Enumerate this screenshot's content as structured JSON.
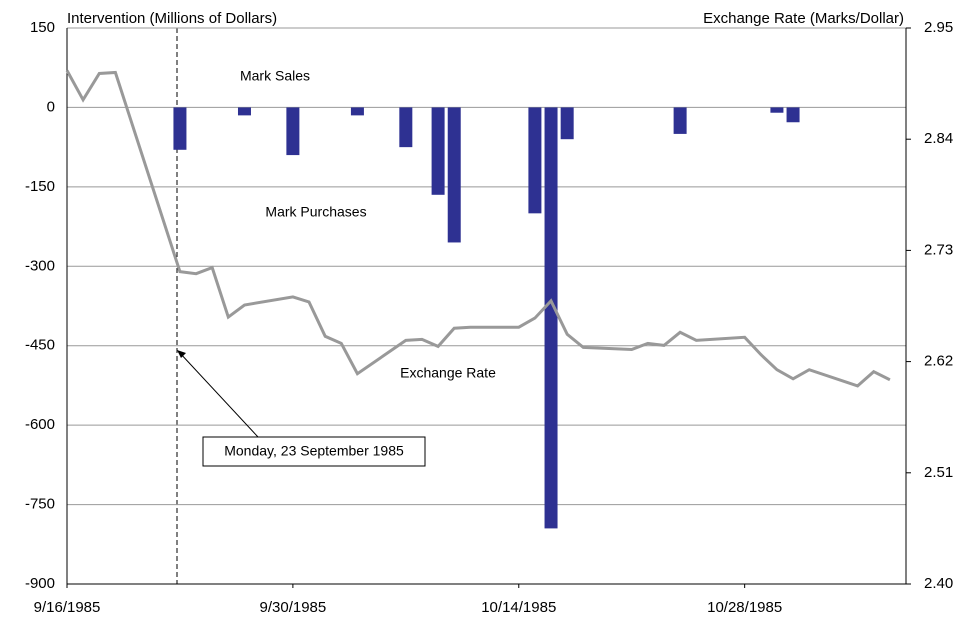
{
  "chart_data": {
    "type": "bar-line",
    "y_label": "Intervention (Millions of Dollars)",
    "y2_label": "Exchange Rate (Marks/Dollar)",
    "xlim": [
      "1985-09-16",
      "1985-11-07"
    ],
    "xticks": [
      {
        "value": "1985-09-16",
        "label": "9/16/1985"
      },
      {
        "value": "1985-09-30",
        "label": "9/30/1985"
      },
      {
        "value": "1985-10-14",
        "label": "10/14/1985"
      },
      {
        "value": "1985-10-28",
        "label": "10/28/1985"
      }
    ],
    "ylim": [
      -900,
      150
    ],
    "yticks": [
      150,
      0,
      -150,
      -300,
      -450,
      -600,
      -750,
      -900
    ],
    "y2lim": [
      2.4,
      2.95
    ],
    "y2ticks": [
      2.95,
      2.84,
      2.73,
      2.62,
      2.51,
      {
        "value": 2.4,
        "label": "2.40"
      }
    ],
    "grid": true,
    "series": [
      {
        "name": "Intervention",
        "type": "bar",
        "color": "#2e3192",
        "x": [
          "1985-09-23",
          "1985-09-27",
          "1985-09-30",
          "1985-10-04",
          "1985-10-07",
          "1985-10-09",
          "1985-10-10",
          "1985-10-15",
          "1985-10-16",
          "1985-10-17",
          "1985-10-24",
          "1985-10-30",
          "1985-10-31"
        ],
        "values": [
          -80,
          -15,
          -90,
          -15,
          -75,
          -165,
          -255,
          -200,
          -795,
          -60,
          -50,
          -10,
          -28
        ]
      },
      {
        "name": "Exchange Rate",
        "type": "line",
        "axis": "y2",
        "color": "#999999",
        "x": [
          "1985-09-16",
          "1985-09-17",
          "1985-09-18",
          "1985-09-19",
          "1985-09-23",
          "1985-09-24",
          "1985-09-25",
          "1985-09-26",
          "1985-09-27",
          "1985-09-30",
          "1985-10-01",
          "1985-10-02",
          "1985-10-03",
          "1985-10-04",
          "1985-10-07",
          "1985-10-08",
          "1985-10-09",
          "1985-10-10",
          "1985-10-11",
          "1985-10-14",
          "1985-10-15",
          "1985-10-16",
          "1985-10-17",
          "1985-10-18",
          "1985-10-21",
          "1985-10-22",
          "1985-10-23",
          "1985-10-24",
          "1985-10-25",
          "1985-10-28",
          "1985-10-29",
          "1985-10-30",
          "1985-10-31",
          "1985-11-01",
          "1985-11-04",
          "1985-11-05",
          "1985-11-06"
        ],
        "values": [
          2.908,
          2.879,
          2.905,
          2.906,
          2.709,
          2.707,
          2.713,
          2.664,
          2.676,
          2.684,
          2.679,
          2.645,
          2.638,
          2.608,
          2.641,
          2.642,
          2.635,
          2.653,
          2.654,
          2.654,
          2.663,
          2.68,
          2.647,
          2.634,
          2.632,
          2.638,
          2.636,
          2.649,
          2.641,
          2.644,
          2.627,
          2.612,
          2.603,
          2.612,
          2.596,
          2.61,
          2.602
        ]
      }
    ],
    "annotations": [
      "Mark Sales",
      "Mark Purchases",
      "Exchange Rate",
      "Monday, 23 September 1985"
    ]
  }
}
